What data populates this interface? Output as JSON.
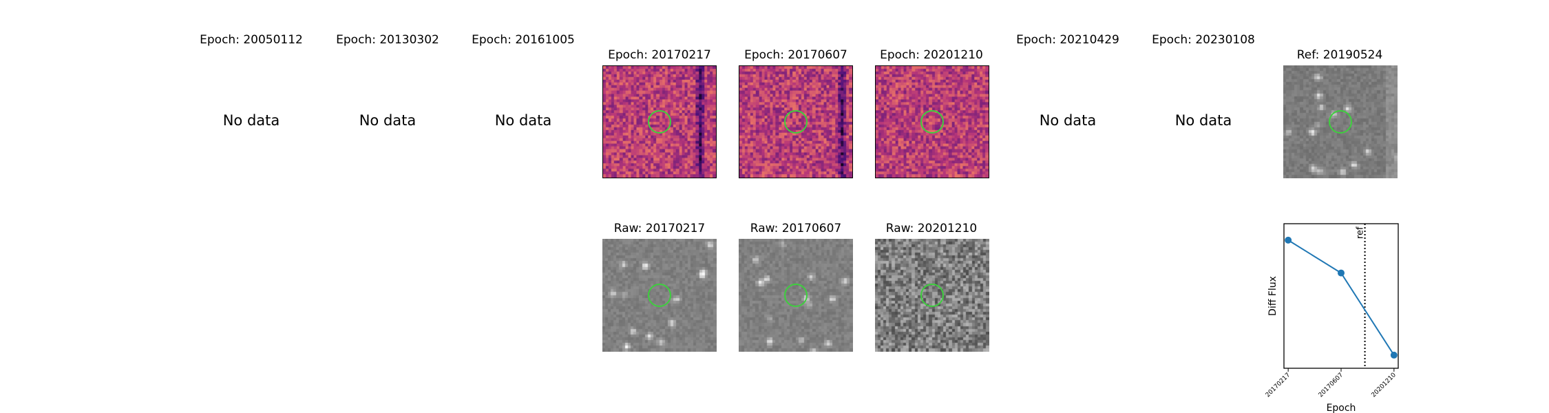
{
  "top_row": {
    "epoch_prefix": "Epoch: ",
    "nodata_text": "No data",
    "epochs": [
      {
        "label": "Epoch: 20050112",
        "has_data": false
      },
      {
        "label": "Epoch: 20130302",
        "has_data": false
      },
      {
        "label": "Epoch: 20161005",
        "has_data": false
      },
      {
        "label": "Epoch: 20170217",
        "has_data": true
      },
      {
        "label": "Epoch: 20170607",
        "has_data": true
      },
      {
        "label": "Epoch: 20201210",
        "has_data": true
      },
      {
        "label": "Epoch: 20210429",
        "has_data": false
      },
      {
        "label": "Epoch: 20230108",
        "has_data": false
      }
    ],
    "ref_label": "Ref: 20190524"
  },
  "bottom_row": {
    "raw_labels": [
      "Raw: 20170217",
      "Raw: 20170607",
      "Raw: 20201210"
    ]
  },
  "colors": {
    "marker_circle": "#3ecf3e",
    "line": "#1f77b4",
    "diff_cmap": "magma",
    "raw_cmap": "gray"
  },
  "chart_data": {
    "type": "line",
    "categories": [
      "20170217",
      "20170607",
      "20201210"
    ],
    "values": [
      0.85,
      0.55,
      -0.2
    ],
    "ylabel": "Diff Flux",
    "xlabel": "Epoch",
    "ylim": [
      -0.32,
      1.0
    ],
    "ref_line": {
      "label": "ref",
      "position": 1.45,
      "style": "dotted"
    },
    "grid": false,
    "legend": "none"
  }
}
